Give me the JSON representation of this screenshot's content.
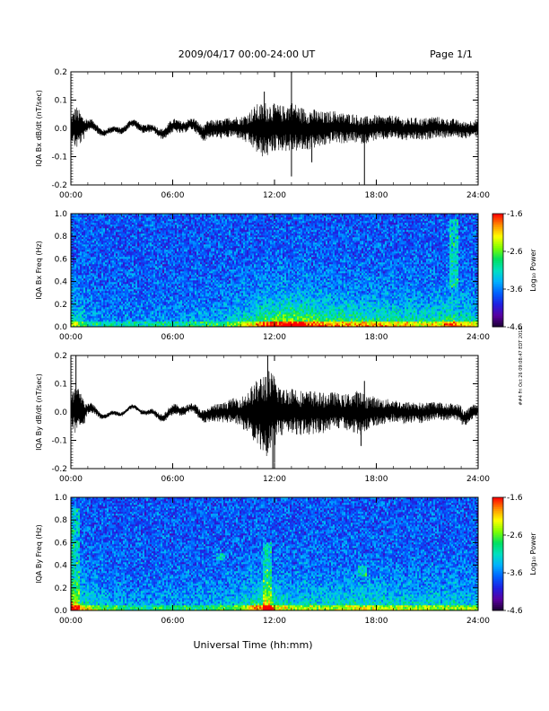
{
  "header": {
    "title": "2009/04/17  00:00-24:00 UT",
    "page": "Page 1/1"
  },
  "xaxis": {
    "label": "Universal Time (hh:mm)",
    "range_hours": [
      0,
      24
    ],
    "ticks": [
      0,
      6,
      12,
      18,
      24
    ],
    "tick_labels": [
      "00:00",
      "06:00",
      "12:00",
      "18:00",
      "24:00"
    ]
  },
  "side_stamp": "##4 Fri Oct 26 09:08:47 EDT 2018",
  "colors": {
    "trace": "#000000",
    "colormap": [
      "#1a0030",
      "#5a00a0",
      "#2020e0",
      "#0060ff",
      "#00b0ff",
      "#00e0c0",
      "#00e060",
      "#80ff00",
      "#ffff00",
      "#ff9000",
      "#ff0000"
    ]
  },
  "chart_data": [
    {
      "type": "line",
      "ylabel": "IQA Bx dB/dt (nT/sec)",
      "ylim": [
        -0.2,
        0.2
      ],
      "yticks": [
        -0.2,
        -0.1,
        0.0,
        0.1,
        0.2
      ],
      "ytick_labels": [
        "-0.2",
        "-0.1",
        "0.0",
        "0.1",
        "0.2"
      ],
      "envelope_hours": [
        0,
        0.3,
        1,
        2,
        3,
        4,
        5,
        6,
        7,
        8,
        9,
        10,
        10.5,
        11,
        11.5,
        12,
        12.5,
        13,
        13.5,
        14,
        15,
        16,
        17,
        18,
        19,
        20,
        21,
        22,
        23,
        24
      ],
      "envelope_amp": [
        0.04,
        0.08,
        0.02,
        0.012,
        0.012,
        0.015,
        0.015,
        0.025,
        0.02,
        0.03,
        0.035,
        0.04,
        0.06,
        0.09,
        0.1,
        0.085,
        0.08,
        0.09,
        0.08,
        0.075,
        0.06,
        0.055,
        0.05,
        0.045,
        0.04,
        0.04,
        0.04,
        0.035,
        0.03,
        0.03
      ],
      "spikes": [
        [
          13.0,
          0.2
        ],
        [
          13.0,
          -0.17
        ],
        [
          17.3,
          -0.2
        ],
        [
          11.4,
          0.13
        ],
        [
          14.2,
          -0.12
        ]
      ]
    },
    {
      "type": "heatmap",
      "ylabel": "IQA Bx Freq (Hz)",
      "ylim": [
        0.0,
        1.0
      ],
      "yticks": [
        0.0,
        0.2,
        0.4,
        0.6,
        0.8,
        1.0
      ],
      "ytick_labels": [
        "0.0",
        "0.2",
        "0.4",
        "0.6",
        "0.8",
        "1.0"
      ],
      "colorbar": {
        "label": "Log₁₀ Power",
        "range": [
          -4.6,
          -1.6
        ],
        "ticks": [
          -4.6,
          -3.6,
          -2.6,
          -1.6
        ],
        "tick_labels": [
          "-4.6",
          "-3.6",
          "-2.6",
          "-1.6"
        ]
      },
      "activity_hours": [
        0,
        1,
        3,
        6,
        9,
        10.5,
        12,
        13,
        15,
        18,
        21,
        22.5,
        24
      ],
      "activity_level": [
        0.35,
        0.15,
        0.1,
        0.12,
        0.2,
        0.35,
        0.55,
        0.6,
        0.45,
        0.4,
        0.35,
        0.45,
        0.3
      ],
      "bands": [
        [
          22.6,
          0.35,
          0.95
        ]
      ]
    },
    {
      "type": "line",
      "ylabel": "IQA By dB/dt (nT/sec)",
      "ylim": [
        -0.2,
        0.2
      ],
      "yticks": [
        -0.2,
        -0.1,
        0.0,
        0.1,
        0.2
      ],
      "ytick_labels": [
        "-0.2",
        "-0.1",
        "0.0",
        "0.1",
        "0.2"
      ],
      "envelope_hours": [
        0,
        0.3,
        1,
        2,
        3,
        4,
        5,
        6,
        7,
        8,
        9,
        10,
        10.5,
        11,
        11.5,
        12,
        12.5,
        13,
        13.5,
        14,
        15,
        16,
        17,
        18,
        19,
        20,
        21,
        22,
        23,
        24
      ],
      "envelope_amp": [
        0.05,
        0.1,
        0.02,
        0.008,
        0.008,
        0.008,
        0.012,
        0.02,
        0.015,
        0.025,
        0.035,
        0.05,
        0.08,
        0.12,
        0.16,
        0.13,
        0.08,
        0.09,
        0.08,
        0.08,
        0.07,
        0.06,
        0.08,
        0.05,
        0.04,
        0.04,
        0.035,
        0.03,
        0.03,
        0.025
      ],
      "spikes": [
        [
          0.3,
          0.2
        ],
        [
          11.6,
          0.2
        ],
        [
          11.9,
          -0.2
        ],
        [
          12.0,
          -0.18
        ],
        [
          17.1,
          -0.12
        ],
        [
          17.3,
          0.11
        ]
      ]
    },
    {
      "type": "heatmap",
      "ylabel": "IQA By Freq (Hz)",
      "ylim": [
        0.0,
        1.0
      ],
      "yticks": [
        0.0,
        0.2,
        0.4,
        0.6,
        0.8,
        1.0
      ],
      "ytick_labels": [
        "0.0",
        "0.2",
        "0.4",
        "0.6",
        "0.8",
        "1.0"
      ],
      "colorbar": {
        "label": "Log₁₀ Power",
        "range": [
          -4.6,
          -1.6
        ],
        "ticks": [
          -4.6,
          -3.6,
          -2.6,
          -1.6
        ],
        "tick_labels": [
          "-4.6",
          "-3.6",
          "-2.6",
          "-1.6"
        ]
      },
      "activity_hours": [
        0,
        0.5,
        2,
        4,
        6,
        8,
        10,
        11.5,
        12,
        13,
        15,
        17,
        19,
        21,
        24
      ],
      "activity_level": [
        0.55,
        0.4,
        0.2,
        0.15,
        0.15,
        0.18,
        0.25,
        0.55,
        0.4,
        0.3,
        0.3,
        0.35,
        0.3,
        0.3,
        0.25
      ],
      "bands": [
        [
          0.3,
          0.0,
          0.9
        ],
        [
          11.6,
          0.0,
          0.6
        ],
        [
          17.2,
          0.3,
          0.4
        ],
        [
          8.8,
          0.45,
          0.5
        ]
      ]
    }
  ]
}
